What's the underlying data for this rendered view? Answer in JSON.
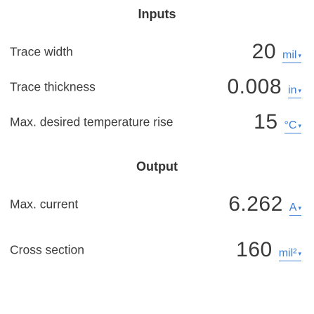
{
  "inputs": {
    "title": "Inputs",
    "trace_width": {
      "label": "Trace width",
      "value": "20",
      "unit": "mil"
    },
    "trace_thickness": {
      "label": "Trace thickness",
      "value": "0.008",
      "unit": "in"
    },
    "temp_rise": {
      "label": "Max. desired temperature rise",
      "value": "15",
      "unit": "°C"
    }
  },
  "output": {
    "title": "Output",
    "max_current": {
      "label": "Max. current",
      "value": "6.262",
      "unit": "A"
    },
    "cross_section": {
      "label": "Cross section",
      "value": "160",
      "unit": "mil²"
    }
  },
  "colors": {
    "accent": "#3b7fd6",
    "text": "#3c3c3c",
    "background": "#ffffff"
  },
  "icons": {
    "unit_dropdown": "triangle-down-icon"
  }
}
